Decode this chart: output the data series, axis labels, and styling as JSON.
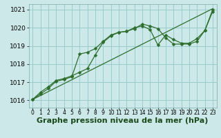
{
  "xlabel": "Graphe pression niveau de la mer (hPa)",
  "bg_color": "#cce8e8",
  "plot_bg_color": "#cce8e8",
  "grid_color": "#99cccc",
  "line_color": "#2d6e2d",
  "xlim": [
    -0.5,
    23.5
  ],
  "ylim": [
    1015.6,
    1021.3
  ],
  "xticks": [
    0,
    1,
    2,
    3,
    4,
    5,
    6,
    7,
    8,
    9,
    10,
    11,
    12,
    13,
    14,
    15,
    16,
    17,
    18,
    19,
    20,
    21,
    22,
    23
  ],
  "yticks": [
    1016,
    1017,
    1018,
    1019,
    1020,
    1021
  ],
  "line1_x": [
    0,
    1,
    2,
    3,
    4,
    5,
    6,
    7,
    8,
    9,
    10,
    11,
    12,
    13,
    14,
    15,
    16,
    17,
    18,
    19,
    20,
    21,
    22,
    23
  ],
  "line1_y": [
    1016.05,
    1016.45,
    1016.75,
    1017.1,
    1017.2,
    1017.35,
    1017.55,
    1017.75,
    1018.5,
    1019.2,
    1019.55,
    1019.75,
    1019.8,
    1020.0,
    1020.1,
    1019.9,
    1019.05,
    1019.6,
    1019.35,
    1019.15,
    1019.15,
    1019.4,
    1019.85,
    1021.0
  ],
  "line2_x": [
    0,
    1,
    2,
    3,
    4,
    5,
    6,
    7,
    8,
    9,
    10,
    11,
    12,
    13,
    14,
    15,
    16,
    17,
    18,
    19,
    20,
    21,
    22,
    23
  ],
  "line2_y": [
    1016.05,
    1016.35,
    1016.65,
    1017.05,
    1017.15,
    1017.3,
    1018.55,
    1018.65,
    1018.85,
    1019.25,
    1019.6,
    1019.75,
    1019.8,
    1019.95,
    1020.2,
    1020.1,
    1019.95,
    1019.45,
    1019.1,
    1019.1,
    1019.1,
    1019.25,
    1019.85,
    1020.9
  ],
  "line3_x": [
    0,
    23
  ],
  "line3_y": [
    1016.05,
    1021.05
  ],
  "xlabel_fontsize": 8,
  "tick_fontsize": 6.5,
  "markersize": 2.5
}
